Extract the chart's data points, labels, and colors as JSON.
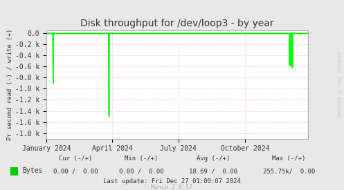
{
  "title": "Disk throughput for /dev/loop3 - by year",
  "ylabel": "Pr second read (-) / write (+)",
  "background_color": "#e8e8e8",
  "plot_background_color": "#ffffff",
  "grid_color": "#ff9999",
  "line_color": "#00ff00",
  "zero_line_color": "#cc0000",
  "border_color": "#aaaaaa",
  "yticks": [
    0.0,
    -0.2,
    -0.4,
    -0.6,
    -0.8,
    -1.0,
    -1.2,
    -1.4,
    -1.6,
    -1.8
  ],
  "ylim_min": -1900,
  "ylim_max": 50,
  "xlim_start": 1704067200,
  "xlim_end": 1735257600,
  "xtick_positions": [
    1704067200,
    1711929600,
    1719792000,
    1727740800
  ],
  "xtick_labels": [
    "January 2024",
    "April 2024",
    "July 2024",
    "October 2024"
  ],
  "spike1_x": 1704844800,
  "spike1_y": -900,
  "spike2_x": 1711497600,
  "spike2_y": -1500,
  "spike3_start": 1733011200,
  "spike3_y": -575,
  "spike3_big_y": -625,
  "watermark": "RRDTOOL / TOBI OETIKER",
  "legend_label": "Bytes",
  "legend_color": "#00cc00",
  "footer_cur": "Cur (-/+)",
  "footer_min": "Min (-/+)",
  "footer_avg": "Avg (-/+)",
  "footer_max": "Max (-/+)",
  "footer_cur_val": "0.00 /  0.00",
  "footer_min_val": "0.00 /  0.00",
  "footer_avg_val": "18.69 /  0.00",
  "footer_max_val": "255.75k/  0.00",
  "footer_lastupdate": "Last update: Fri Dec 27 01:00:07 2024",
  "munin_version": "Munin 2.0.57"
}
